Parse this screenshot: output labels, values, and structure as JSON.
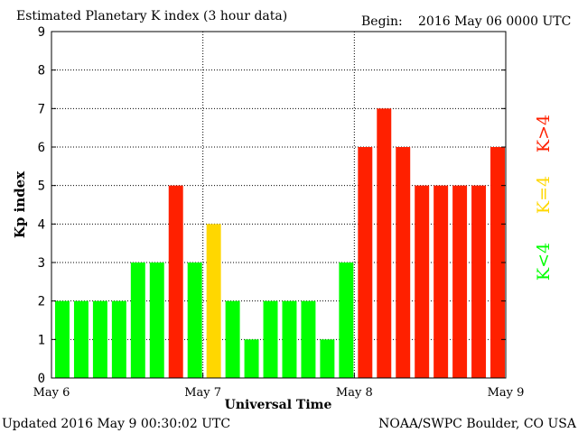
{
  "header": {
    "title": "Estimated Planetary K index (3 hour data)",
    "begin_label": "Begin:",
    "begin_value": "2016 May 06 0000 UTC"
  },
  "footer": {
    "updated": "Updated 2016 May  9 00:30:02 UTC",
    "credit": "NOAA/SWPC Boulder, CO USA"
  },
  "legend": {
    "above": "K>4",
    "equal": "K=4",
    "below": "K<4"
  },
  "colors": {
    "low": "#00ff00",
    "mid": "#ffd700",
    "high": "#ff2000",
    "grid": "#000000"
  },
  "chart_data": {
    "type": "bar",
    "title": "Estimated Planetary K index (3 hour data)",
    "xlabel": "Universal Time",
    "ylabel": "Kp index",
    "ylim": [
      0,
      9
    ],
    "yticks": [
      "0",
      "1",
      "2",
      "3",
      "4",
      "5",
      "6",
      "7",
      "8",
      "9"
    ],
    "xticks": [
      "May 6",
      "May 7",
      "May 8",
      "May 9"
    ],
    "bars_per_day": 8,
    "values": [
      2,
      2,
      2,
      2,
      3,
      3,
      5,
      3,
      4,
      2,
      1,
      2,
      2,
      2,
      1,
      3,
      6,
      7,
      6,
      5,
      5,
      5,
      5,
      6
    ]
  }
}
